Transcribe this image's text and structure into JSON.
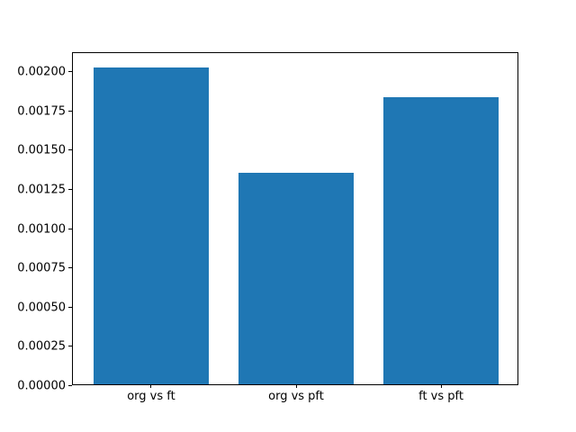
{
  "chart_data": {
    "type": "bar",
    "categories": [
      "org vs ft",
      "org vs pft",
      "ft vs pft"
    ],
    "values": [
      0.00202,
      0.00135,
      0.00183
    ],
    "title": "",
    "xlabel": "",
    "ylabel": "",
    "ylim": [
      0,
      0.002121
    ],
    "yticks": [
      0,
      0.00025,
      0.0005,
      0.00075,
      0.001,
      0.00125,
      0.0015,
      0.00175,
      0.002
    ],
    "ytick_labels": [
      "0.00000",
      "0.00025",
      "0.00050",
      "0.00075",
      "0.00100",
      "0.00125",
      "0.00150",
      "0.00175",
      "0.00200"
    ],
    "bar_color": "#1f77b4",
    "bar_width_fraction": 0.8,
    "x_margin_units": 0.14,
    "grid": false,
    "legend": null
  },
  "colors": {
    "background": "#ffffff",
    "spine": "#000000",
    "text": "#000000"
  }
}
